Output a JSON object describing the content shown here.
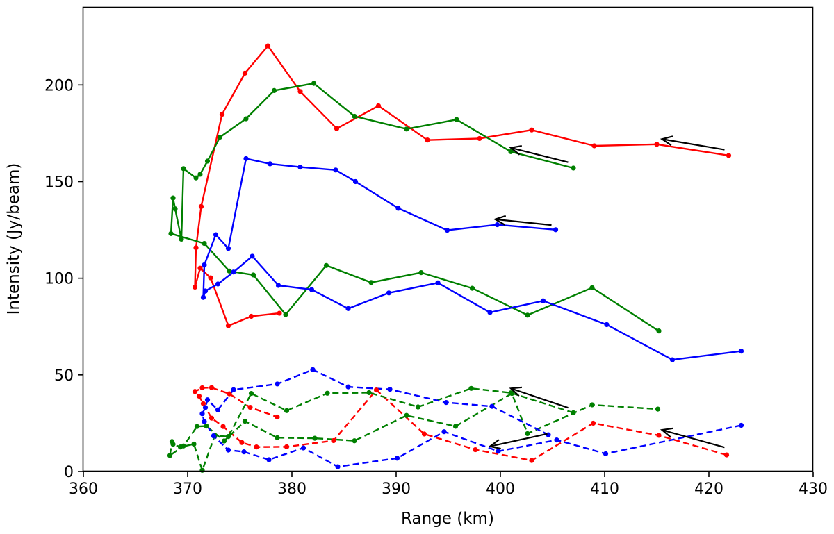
{
  "chart_data": {
    "type": "line",
    "xlabel": "Range (km)",
    "ylabel": "Intensity (Jy/beam)",
    "xlim": [
      360,
      430
    ],
    "ylim": [
      0,
      240
    ],
    "xticks": [
      360,
      370,
      380,
      390,
      400,
      410,
      420,
      430
    ],
    "yticks": [
      0,
      50,
      100,
      150,
      200
    ],
    "grid": false,
    "series": [
      {
        "color": "#ff0000",
        "style": "solid",
        "points": [
          [
            421.9,
            163.5
          ],
          [
            415.0,
            169.3
          ],
          [
            409.0,
            168.5
          ],
          [
            403.0,
            176.7
          ],
          [
            398.0,
            172.3
          ],
          [
            393.0,
            171.5
          ],
          [
            388.3,
            189.2
          ],
          [
            384.3,
            177.4
          ],
          [
            380.8,
            196.6
          ],
          [
            377.7,
            220.2
          ],
          [
            375.5,
            206.1
          ],
          [
            373.3,
            184.8
          ],
          [
            371.3,
            137.1
          ],
          [
            370.8,
            115.8
          ],
          [
            370.7,
            95.4
          ],
          [
            371.2,
            105.2
          ],
          [
            372.2,
            100.2
          ],
          [
            373.9,
            75.4
          ],
          [
            376.1,
            80.3
          ],
          [
            378.8,
            81.9
          ]
        ]
      },
      {
        "color": "#008000",
        "style": "solid",
        "points": [
          [
            407.0,
            157.0
          ],
          [
            401.0,
            165.5
          ],
          [
            395.8,
            182.1
          ],
          [
            391.0,
            177.2
          ],
          [
            386.0,
            183.8
          ],
          [
            382.1,
            200.8
          ],
          [
            378.3,
            197.1
          ],
          [
            375.6,
            182.5
          ],
          [
            373.1,
            173.0
          ],
          [
            371.9,
            160.6
          ],
          [
            371.2,
            153.8
          ],
          [
            370.8,
            151.9
          ],
          [
            369.6,
            156.7
          ],
          [
            369.4,
            120.2
          ],
          [
            368.8,
            135.9
          ],
          [
            368.6,
            141.5
          ],
          [
            368.4,
            123.1
          ],
          [
            371.6,
            118.0
          ],
          [
            374.0,
            103.7
          ],
          [
            376.3,
            101.7
          ],
          [
            379.4,
            81.2
          ],
          [
            383.3,
            106.6
          ],
          [
            387.6,
            97.8
          ],
          [
            392.4,
            102.9
          ],
          [
            397.3,
            94.8
          ],
          [
            402.6,
            80.9
          ],
          [
            408.8,
            95.1
          ],
          [
            415.2,
            72.7
          ]
        ]
      },
      {
        "color": "#0000ff",
        "style": "solid",
        "points": [
          [
            405.3,
            125.1
          ],
          [
            399.7,
            127.7
          ],
          [
            394.9,
            124.8
          ],
          [
            390.2,
            136.2
          ],
          [
            386.1,
            150.0
          ],
          [
            384.2,
            156.0
          ],
          [
            380.8,
            157.5
          ],
          [
            377.9,
            159.2
          ],
          [
            375.6,
            161.9
          ],
          [
            373.9,
            115.4
          ],
          [
            372.7,
            122.5
          ],
          [
            371.6,
            106.9
          ],
          [
            371.5,
            90.1
          ],
          [
            371.7,
            93.4
          ],
          [
            372.9,
            97.0
          ],
          [
            374.4,
            103.2
          ],
          [
            376.2,
            111.4
          ],
          [
            378.7,
            96.3
          ],
          [
            381.9,
            94.1
          ],
          [
            385.4,
            84.3
          ],
          [
            389.3,
            92.4
          ],
          [
            394.0,
            97.6
          ],
          [
            399.0,
            82.3
          ],
          [
            404.1,
            88.3
          ],
          [
            410.2,
            76.0
          ],
          [
            416.5,
            57.8
          ],
          [
            423.1,
            62.3
          ]
        ]
      },
      {
        "color": "#ff0000",
        "style": "dashed",
        "points": [
          [
            421.7,
            8.6
          ],
          [
            415.2,
            18.7
          ],
          [
            408.9,
            25.0
          ],
          [
            403.0,
            5.7
          ],
          [
            397.6,
            11.3
          ],
          [
            392.7,
            19.4
          ],
          [
            388.1,
            42.2
          ],
          [
            384.0,
            16.0
          ],
          [
            379.5,
            12.8
          ],
          [
            376.6,
            12.7
          ],
          [
            375.2,
            15.0
          ],
          [
            373.4,
            23.3
          ],
          [
            372.3,
            27.6
          ],
          [
            371.5,
            35.1
          ],
          [
            371.1,
            39.0
          ],
          [
            370.7,
            41.4
          ],
          [
            371.4,
            43.3
          ],
          [
            372.3,
            43.4
          ],
          [
            374.0,
            40.2
          ],
          [
            376.0,
            33.2
          ],
          [
            378.6,
            28.2
          ]
        ]
      },
      {
        "color": "#008000",
        "style": "dashed",
        "points": [
          [
            407.0,
            30.4
          ],
          [
            401.0,
            40.7
          ],
          [
            397.2,
            43.0
          ],
          [
            392.1,
            33.4
          ],
          [
            387.4,
            40.8
          ],
          [
            383.4,
            40.5
          ],
          [
            379.5,
            31.5
          ],
          [
            376.1,
            40.4
          ],
          [
            373.9,
            18.1
          ],
          [
            372.6,
            18.5
          ],
          [
            371.4,
            0.6
          ],
          [
            370.6,
            14.2
          ],
          [
            369.3,
            12.7
          ],
          [
            368.6,
            14.1
          ],
          [
            368.5,
            15.5
          ],
          [
            368.3,
            8.3
          ],
          [
            369.6,
            13.2
          ],
          [
            370.9,
            23.3
          ],
          [
            371.8,
            23.5
          ],
          [
            373.5,
            15.8
          ],
          [
            375.5,
            26.0
          ],
          [
            378.6,
            17.5
          ],
          [
            382.2,
            17.2
          ],
          [
            386.0,
            15.9
          ],
          [
            391.0,
            29.0
          ],
          [
            395.7,
            23.4
          ],
          [
            401.1,
            40.4
          ],
          [
            402.6,
            19.6
          ],
          [
            408.8,
            34.5
          ],
          [
            415.1,
            32.3
          ]
        ]
      },
      {
        "color": "#0000ff",
        "style": "dashed",
        "points": [
          [
            423.1,
            23.9
          ],
          [
            410.1,
            9.2
          ],
          [
            405.4,
            16.3
          ],
          [
            399.8,
            10.5
          ],
          [
            394.6,
            20.6
          ],
          [
            390.1,
            6.9
          ],
          [
            384.4,
            2.5
          ],
          [
            381.1,
            12.2
          ],
          [
            377.8,
            6.1
          ],
          [
            375.4,
            10.2
          ],
          [
            373.9,
            11.1
          ],
          [
            372.5,
            18.4
          ],
          [
            371.6,
            25.8
          ],
          [
            371.4,
            29.9
          ],
          [
            371.7,
            33.1
          ],
          [
            371.9,
            37.1
          ],
          [
            372.9,
            31.9
          ],
          [
            374.4,
            42.3
          ],
          [
            378.6,
            45.3
          ],
          [
            382.0,
            52.7
          ],
          [
            385.4,
            43.8
          ],
          [
            389.4,
            42.5
          ],
          [
            394.8,
            35.7
          ],
          [
            399.2,
            33.7
          ],
          [
            404.6,
            19.0
          ]
        ]
      }
    ],
    "arrows": [
      {
        "from": [
          421.5,
          166.5
        ],
        "to": [
          415.5,
          172.0
        ]
      },
      {
        "from": [
          406.5,
          160.0
        ],
        "to": [
          401.0,
          167.5
        ]
      },
      {
        "from": [
          404.9,
          127.5
        ],
        "to": [
          399.5,
          130.5
        ]
      },
      {
        "from": [
          406.5,
          33.0
        ],
        "to": [
          401.0,
          43.0
        ]
      },
      {
        "from": [
          404.5,
          19.5
        ],
        "to": [
          399.0,
          13.0
        ]
      },
      {
        "from": [
          421.5,
          12.5
        ],
        "to": [
          415.5,
          21.5
        ]
      }
    ]
  }
}
